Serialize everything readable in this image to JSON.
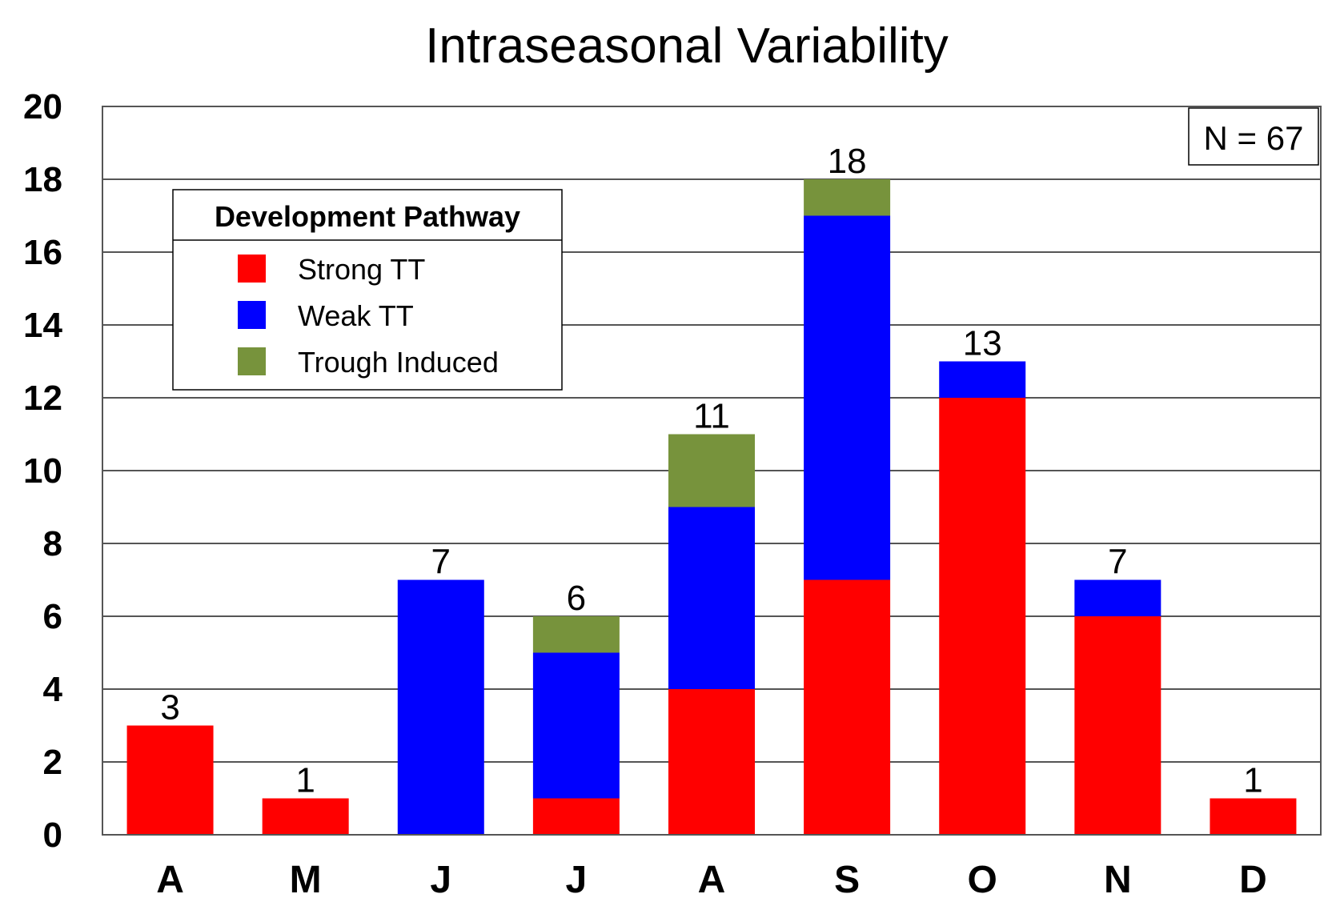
{
  "chart_data": {
    "type": "bar",
    "stacked": true,
    "title": "Intraseasonal Variability",
    "xlabel": "",
    "ylabel": "",
    "ylim": [
      0,
      20
    ],
    "yticks": [
      0,
      2,
      4,
      6,
      8,
      10,
      12,
      14,
      16,
      18,
      20
    ],
    "grid": true,
    "categories": [
      "A",
      "M",
      "J",
      "J",
      "A",
      "S",
      "O",
      "N",
      "D"
    ],
    "series": [
      {
        "name": "Strong TT",
        "color": "#ff0000",
        "values": [
          3,
          1,
          0,
          1,
          4,
          7,
          12,
          6,
          1
        ]
      },
      {
        "name": "Weak TT",
        "color": "#0000ff",
        "values": [
          0,
          0,
          7,
          4,
          5,
          10,
          1,
          1,
          0
        ]
      },
      {
        "name": "Trough Induced",
        "color": "#77933c",
        "values": [
          0,
          0,
          0,
          1,
          2,
          1,
          0,
          0,
          0
        ]
      }
    ],
    "totals": [
      "3",
      "1",
      "7",
      "6",
      "11",
      "18",
      "13",
      "7",
      "1"
    ],
    "legend": {
      "title": "Development Pathway",
      "position": "top-left"
    },
    "annotation": "N = 67"
  }
}
